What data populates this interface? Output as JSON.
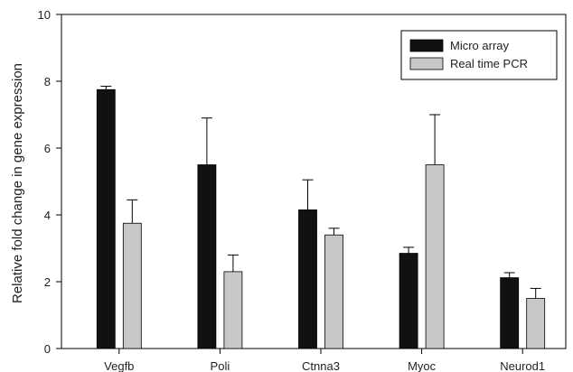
{
  "chart_data": {
    "type": "bar",
    "title": "",
    "xlabel": "",
    "ylabel": "Relative fold change in gene expression",
    "ylim": [
      0,
      10
    ],
    "yticks": [
      0,
      2,
      4,
      6,
      8,
      10
    ],
    "categories": [
      "Vegfb",
      "Poli",
      "Ctnna3",
      "Myoc",
      "Neurod1"
    ],
    "series": [
      {
        "name": "Micro array",
        "color": "#111111",
        "values": [
          7.75,
          5.5,
          4.15,
          2.85,
          2.12
        ],
        "errors": [
          0.1,
          1.4,
          0.9,
          0.18,
          0.15
        ]
      },
      {
        "name": "Real time PCR",
        "color": "#c8c8c8",
        "values": [
          3.75,
          2.3,
          3.4,
          5.5,
          1.5
        ],
        "errors": [
          0.7,
          0.5,
          0.2,
          1.5,
          0.3
        ]
      }
    ],
    "error_bars": "upper",
    "grid": false,
    "legend_position": "top-right"
  }
}
